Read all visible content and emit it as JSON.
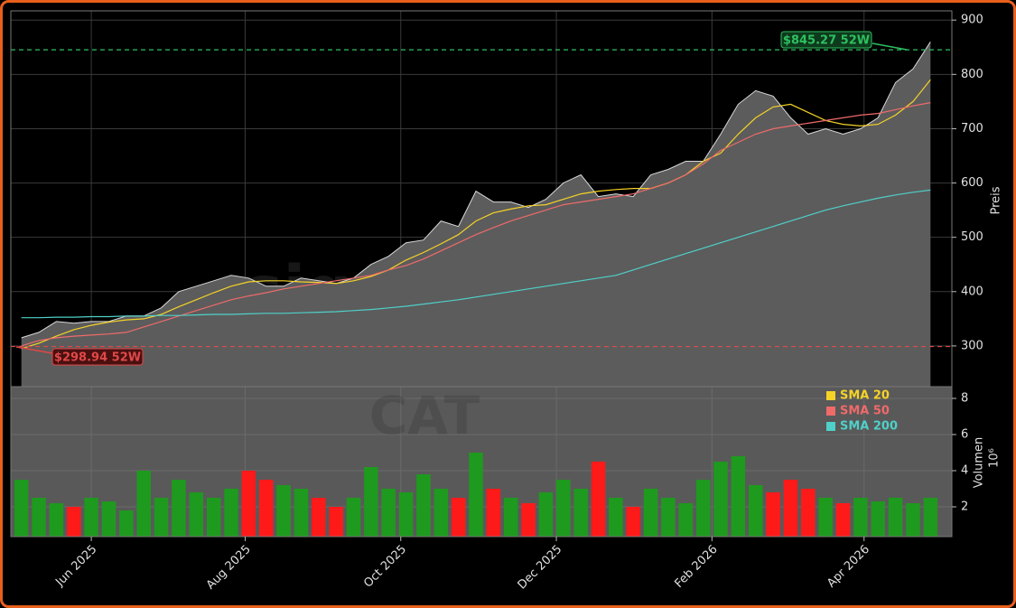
{
  "chart_data": [
    {
      "type": "line",
      "title": "CAT",
      "watermark": "signale.trade",
      "y_label": "Preis",
      "categories": [
        null,
        null,
        null,
        null,
        null,
        null,
        null,
        null,
        null,
        null,
        null,
        null,
        null,
        null,
        null,
        null,
        null,
        null,
        null,
        null,
        null,
        null,
        null,
        null,
        null,
        null,
        null,
        null,
        null,
        null,
        null,
        null,
        null,
        null,
        null,
        null,
        null,
        null,
        null,
        null,
        null,
        null,
        null,
        null,
        null,
        null,
        null,
        null,
        null,
        null,
        null,
        null,
        null
      ],
      "series": [
        {
          "color": "#d8d8d8",
          "area_color": "#5c5c5c",
          "values": [
            315,
            325,
            345,
            342,
            345,
            345,
            355,
            355,
            370,
            400,
            410,
            420,
            430,
            425,
            410,
            410,
            425,
            420,
            415,
            425,
            450,
            465,
            490,
            495,
            530,
            520,
            585,
            565,
            565,
            555,
            570,
            600,
            615,
            575,
            580,
            575,
            615,
            625,
            640,
            640,
            690,
            745,
            770,
            760,
            720,
            690,
            700,
            690,
            700,
            720,
            785,
            810,
            860
          ]
        },
        {
          "name": "SMA 20",
          "color": "#f5d327",
          "values": [
            295,
            305,
            318,
            330,
            338,
            344,
            348,
            350,
            358,
            372,
            385,
            398,
            410,
            418,
            420,
            420,
            418,
            417,
            415,
            420,
            428,
            440,
            458,
            472,
            488,
            505,
            530,
            545,
            552,
            558,
            560,
            570,
            580,
            585,
            588,
            590,
            590,
            600,
            615,
            640,
            655,
            690,
            720,
            740,
            745,
            730,
            715,
            708,
            705,
            708,
            725,
            750,
            790
          ]
        },
        {
          "name": "SMA 50",
          "color": "#f06a6a",
          "values": [
            300,
            310,
            315,
            318,
            320,
            322,
            325,
            335,
            345,
            355,
            365,
            375,
            385,
            392,
            398,
            405,
            410,
            415,
            420,
            425,
            430,
            440,
            448,
            460,
            475,
            490,
            505,
            518,
            530,
            540,
            550,
            560,
            565,
            570,
            575,
            580,
            590,
            600,
            615,
            635,
            660,
            675,
            690,
            700,
            705,
            710,
            715,
            720,
            725,
            728,
            735,
            742,
            748
          ]
        },
        {
          "name": "SMA 200",
          "color": "#4fd0c8",
          "values": [
            352,
            352,
            353,
            353,
            354,
            354,
            355,
            355,
            356,
            356,
            357,
            358,
            358,
            359,
            360,
            360,
            361,
            362,
            363,
            365,
            367,
            370,
            373,
            377,
            381,
            385,
            390,
            395,
            400,
            405,
            410,
            415,
            420,
            425,
            430,
            440,
            450,
            460,
            470,
            480,
            490,
            500,
            510,
            520,
            530,
            540,
            550,
            558,
            565,
            572,
            578,
            583,
            587
          ]
        }
      ],
      "annotations": [
        {
          "value": 845.27,
          "label": "$845.27 52W",
          "color": "#2ec060"
        },
        {
          "value": 298.94,
          "label": "$298.94 52W",
          "color": "#e04848"
        }
      ],
      "ylim": [
        225,
        917
      ],
      "yticks": [
        300,
        400,
        500,
        600,
        700,
        800,
        900
      ],
      "grid": true
    },
    {
      "type": "bar",
      "y_label": "Volumen",
      "y_offset_label": "10⁶",
      "up_color": "#1e9a1e",
      "down_color": "#ff1a1a",
      "categories": [
        null,
        null,
        null,
        null,
        null,
        null,
        null,
        null,
        null,
        null,
        null,
        null,
        null,
        null,
        null,
        null,
        null,
        null,
        null,
        null,
        null,
        null,
        null,
        null,
        null,
        null,
        null,
        null,
        null,
        null,
        null,
        null,
        null,
        null,
        null,
        null,
        null,
        null,
        null,
        null,
        null,
        null,
        null,
        null,
        null,
        null,
        null,
        null,
        null,
        null,
        null,
        null,
        null
      ],
      "values": [
        3.5,
        2.5,
        2.2,
        2.0,
        2.5,
        2.3,
        1.8,
        4.0,
        2.5,
        3.5,
        2.8,
        2.5,
        3.0,
        4.0,
        3.5,
        3.2,
        3.0,
        2.5,
        2.0,
        2.5,
        4.2,
        3.0,
        2.8,
        3.8,
        3.0,
        2.5,
        5.0,
        3.0,
        2.5,
        2.2,
        2.8,
        3.5,
        3.0,
        4.5,
        2.5,
        2.0,
        3.0,
        2.5,
        2.2,
        3.5,
        4.5,
        4.8,
        3.2,
        2.8,
        3.5,
        3.0,
        2.5,
        2.2,
        2.5,
        2.3,
        2.5,
        2.2,
        2.5
      ],
      "ylim": [
        0.35,
        8.65
      ],
      "yticks": [
        2,
        4,
        6,
        8
      ],
      "xticks": [
        {
          "value": 4.0,
          "label": "Jun 2025"
        },
        {
          "value": 12.8,
          "label": "Aug 2025"
        },
        {
          "value": 21.7,
          "label": "Oct 2025"
        },
        {
          "value": 30.6,
          "label": "Dec 2025"
        },
        {
          "value": 39.5,
          "label": "Feb 2026"
        },
        {
          "value": 48.2,
          "label": "Apr 2026"
        }
      ],
      "grid": true
    }
  ]
}
